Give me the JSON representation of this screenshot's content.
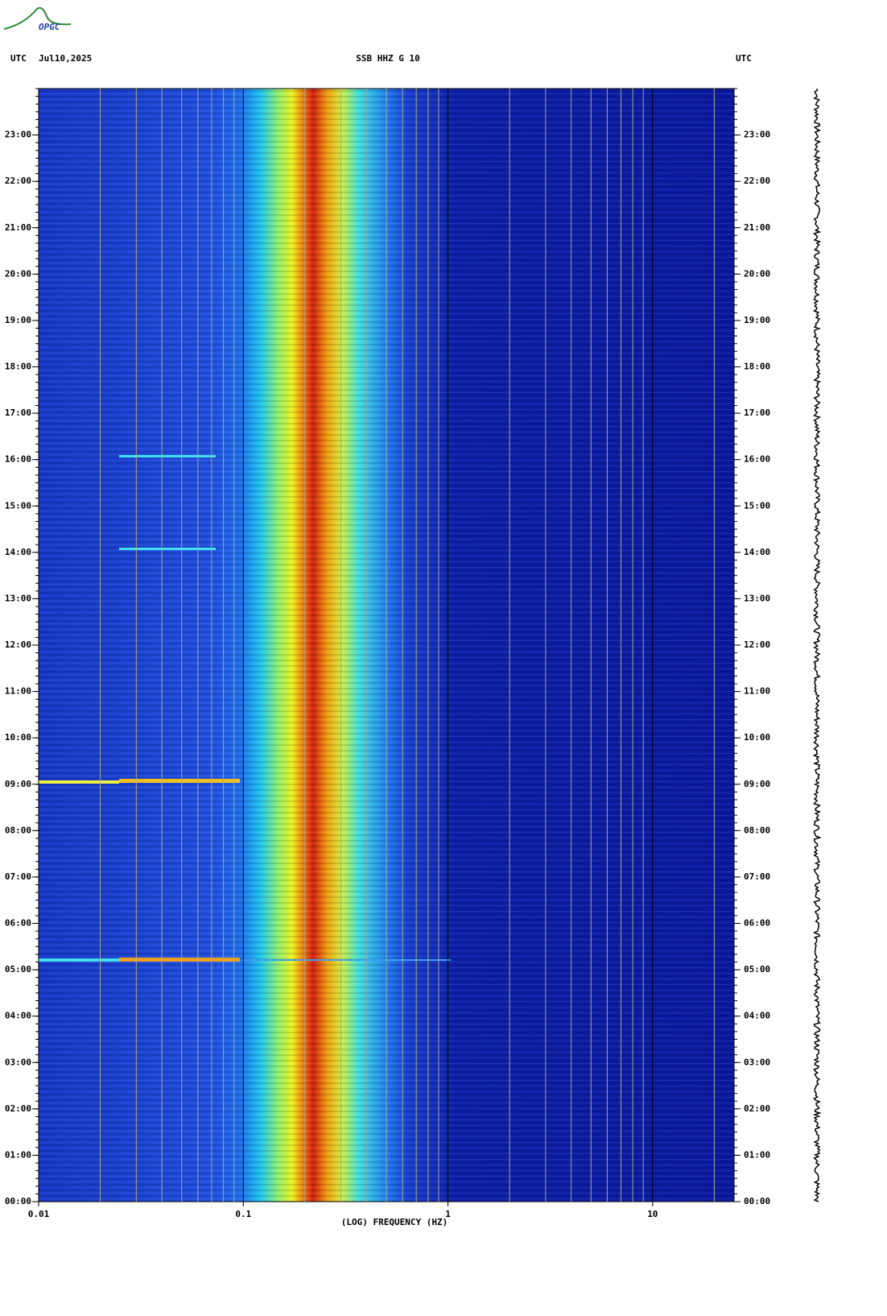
{
  "logo": "OPGC",
  "chart_data": {
    "type": "spectrogram",
    "title": "SSB HHZ G 10",
    "left_label": "UTC",
    "date": "Jul10,2025",
    "right_label": "UTC",
    "xlabel": "(LOG) FREQUENCY (HZ)",
    "xscale": "log",
    "xlim": [
      0.01,
      25
    ],
    "xticks": [
      0.01,
      0.1,
      1,
      10
    ],
    "ylim": [
      0,
      24
    ],
    "yticks": [
      {
        "value": 0,
        "label": "00:00"
      },
      {
        "value": 1,
        "label": "01:00"
      },
      {
        "value": 2,
        "label": "02:00"
      },
      {
        "value": 3,
        "label": "03:00"
      },
      {
        "value": 4,
        "label": "04:00"
      },
      {
        "value": 5,
        "label": "05:00"
      },
      {
        "value": 6,
        "label": "06:00"
      },
      {
        "value": 7,
        "label": "07:00"
      },
      {
        "value": 8,
        "label": "08:00"
      },
      {
        "value": 9,
        "label": "09:00"
      },
      {
        "value": 10,
        "label": "10:00"
      },
      {
        "value": 11,
        "label": "11:00"
      },
      {
        "value": 12,
        "label": "12:00"
      },
      {
        "value": 13,
        "label": "13:00"
      },
      {
        "value": 14,
        "label": "14:00"
      },
      {
        "value": 15,
        "label": "15:00"
      },
      {
        "value": 16,
        "label": "16:00"
      },
      {
        "value": 17,
        "label": "17:00"
      },
      {
        "value": 18,
        "label": "18:00"
      },
      {
        "value": 19,
        "label": "19:00"
      },
      {
        "value": 20,
        "label": "20:00"
      },
      {
        "value": 21,
        "label": "21:00"
      },
      {
        "value": 22,
        "label": "22:00"
      },
      {
        "value": 23,
        "label": "23:00"
      }
    ]
  }
}
